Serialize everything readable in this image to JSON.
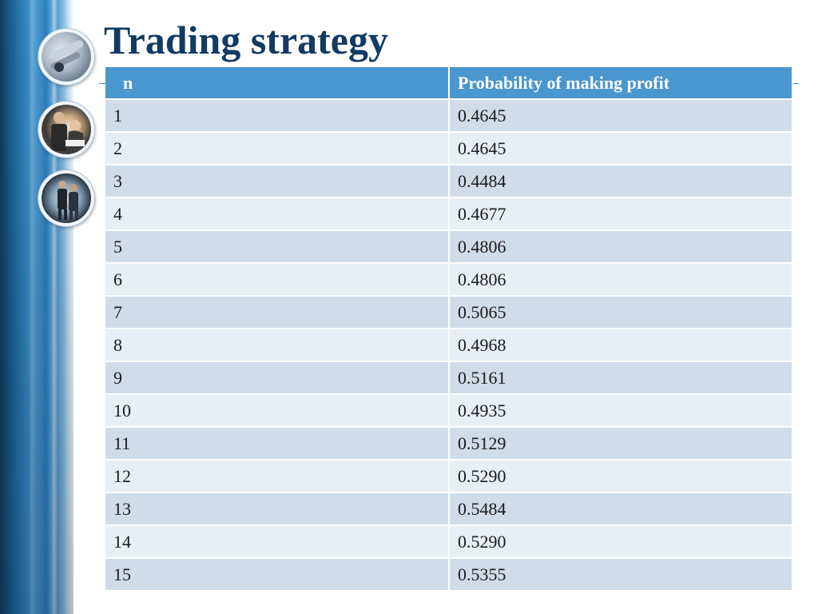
{
  "slide": {
    "title": "Trading strategy"
  },
  "table": {
    "headers": [
      "n",
      "Probability of making profit"
    ],
    "rows": [
      [
        "1",
        "0.4645"
      ],
      [
        "2",
        "0.4645"
      ],
      [
        "3",
        "0.4484"
      ],
      [
        "4",
        "0.4677"
      ],
      [
        "5",
        "0.4806"
      ],
      [
        "6",
        "0.4806"
      ],
      [
        "7",
        "0.5065"
      ],
      [
        "8",
        "0.4968"
      ],
      [
        "9",
        "0.5161"
      ],
      [
        "10",
        "0.4935"
      ],
      [
        "11",
        "0.5129"
      ],
      [
        "12",
        "0.5290"
      ],
      [
        "13",
        "0.5484"
      ],
      [
        "14",
        "0.5290"
      ],
      [
        "15",
        "0.5355"
      ]
    ]
  },
  "decor": {
    "images": [
      "office-equipment-photo",
      "business-people-photo",
      "walking-businessmen-photo"
    ],
    "colors": {
      "title": "#123a63",
      "header_bg": "#4a96cf",
      "row_odd": "#cfdcea",
      "row_even": "#e8eef6"
    }
  }
}
